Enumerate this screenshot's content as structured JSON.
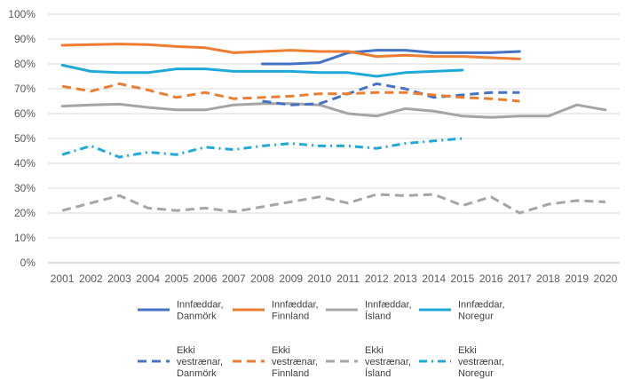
{
  "chart_data": {
    "type": "line",
    "x": [
      2001,
      2002,
      2003,
      2004,
      2005,
      2006,
      2007,
      2008,
      2009,
      2010,
      2011,
      2012,
      2013,
      2014,
      2015,
      2016,
      2017,
      2018,
      2019,
      2020
    ],
    "x_tick_labels": [
      "2001",
      "2002",
      "2003",
      "2004",
      "2005",
      "2006",
      "2007",
      "2008",
      "2009",
      "2010",
      "2011",
      "2012",
      "2013",
      "2014",
      "2015",
      "2016",
      "2017",
      "2018",
      "2019",
      "2020"
    ],
    "ylim": [
      0,
      100
    ],
    "y_ticks": [
      0,
      10,
      20,
      30,
      40,
      50,
      60,
      70,
      80,
      90,
      100
    ],
    "y_tick_labels": [
      "0%",
      "10%",
      "20%",
      "30%",
      "40%",
      "50%",
      "60%",
      "70%",
      "80%",
      "90%",
      "100%"
    ],
    "grid": true,
    "legend_position": "bottom",
    "series": [
      {
        "name_lines": [
          "Innfæddar,",
          "Danmörk"
        ],
        "color": "#4472c4",
        "dash": "solid",
        "values": [
          null,
          null,
          null,
          null,
          null,
          null,
          null,
          80,
          80,
          80.5,
          84.5,
          85.5,
          85.5,
          84.5,
          84.5,
          84.5,
          85,
          null,
          null,
          null
        ]
      },
      {
        "name_lines": [
          "Innfæddar,",
          "Finnland"
        ],
        "color": "#ed7d31",
        "dash": "solid",
        "values": [
          87.5,
          87.8,
          88,
          87.8,
          87,
          86.5,
          84.5,
          85,
          85.5,
          85,
          85,
          83,
          83.5,
          83,
          83,
          82.5,
          82,
          null,
          null,
          null
        ]
      },
      {
        "name_lines": [
          "Innfæddar,",
          "Ísland"
        ],
        "color": "#a5a5a5",
        "dash": "solid",
        "values": [
          63,
          63.5,
          63.8,
          62.5,
          61.5,
          61.5,
          63.5,
          64,
          64,
          63.5,
          60,
          59,
          62,
          61,
          59,
          58.5,
          59,
          59,
          63.5,
          61.5
        ]
      },
      {
        "name_lines": [
          "Innfæddar,",
          "Noregur"
        ],
        "color": "#1fa9d8",
        "dash": "solid",
        "values": [
          79.5,
          77,
          76.5,
          76.5,
          78,
          78,
          77,
          77,
          77,
          76.5,
          76.5,
          75,
          76.5,
          77,
          77.5,
          null,
          null,
          null,
          null,
          null
        ]
      },
      {
        "name_lines": [
          "Ekki",
          "vestrænar,",
          "Danmörk"
        ],
        "color": "#4472c4",
        "dash": "dash",
        "values": [
          null,
          null,
          null,
          null,
          null,
          null,
          null,
          65,
          63.5,
          64,
          68,
          72,
          70,
          66.5,
          67.5,
          68.5,
          68.5,
          null,
          null,
          null
        ]
      },
      {
        "name_lines": [
          "Ekki",
          "vestrænar,",
          "Finnland"
        ],
        "color": "#ed7d31",
        "dash": "dash",
        "values": [
          71,
          69,
          72,
          69.5,
          66.5,
          68.5,
          66,
          66.5,
          67,
          68,
          68,
          68.5,
          68.5,
          67.5,
          66.5,
          66,
          65,
          null,
          null,
          null
        ]
      },
      {
        "name_lines": [
          "Ekki",
          "vestrænar,",
          "Ísland"
        ],
        "color": "#a5a5a5",
        "dash": "dash",
        "values": [
          21,
          24,
          27,
          22,
          21,
          22,
          20.5,
          22.5,
          24.5,
          26.5,
          24,
          27.5,
          27,
          27.5,
          23,
          26.5,
          20,
          23.5,
          25,
          24.5
        ]
      },
      {
        "name_lines": [
          "Ekki",
          "vestrænar,",
          "Noregur"
        ],
        "color": "#1fa9d8",
        "dash": "dashdot",
        "values": [
          43.5,
          47,
          42.5,
          44.5,
          43.5,
          46.5,
          45.5,
          47,
          48,
          47,
          47,
          46,
          48,
          49,
          50,
          null,
          null,
          null,
          null,
          null
        ]
      }
    ]
  }
}
